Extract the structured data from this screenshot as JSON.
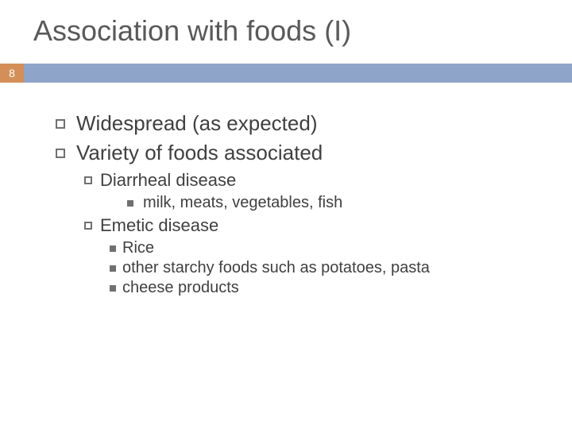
{
  "title": "Association with foods (I)",
  "page_number": "8",
  "colors": {
    "bar": "#8fa4c9",
    "page_box": "#d38f57",
    "title_text": "#595959",
    "body_text": "#404040",
    "bullet_border": "#707070",
    "background": "#ffffff"
  },
  "font_sizes": {
    "title": 36,
    "lvl1": 26,
    "lvl2": 22,
    "lvl3": 20
  },
  "bullets": {
    "lvl1": [
      "Widespread (as expected)",
      "Variety of foods associated"
    ],
    "diarrheal": {
      "label": "Diarrheal disease",
      "items": [
        "milk, meats, vegetables, fish"
      ]
    },
    "emetic": {
      "label": "Emetic disease",
      "items": [
        "Rice",
        "other starchy foods such as potatoes, pasta",
        "cheese products"
      ]
    }
  }
}
